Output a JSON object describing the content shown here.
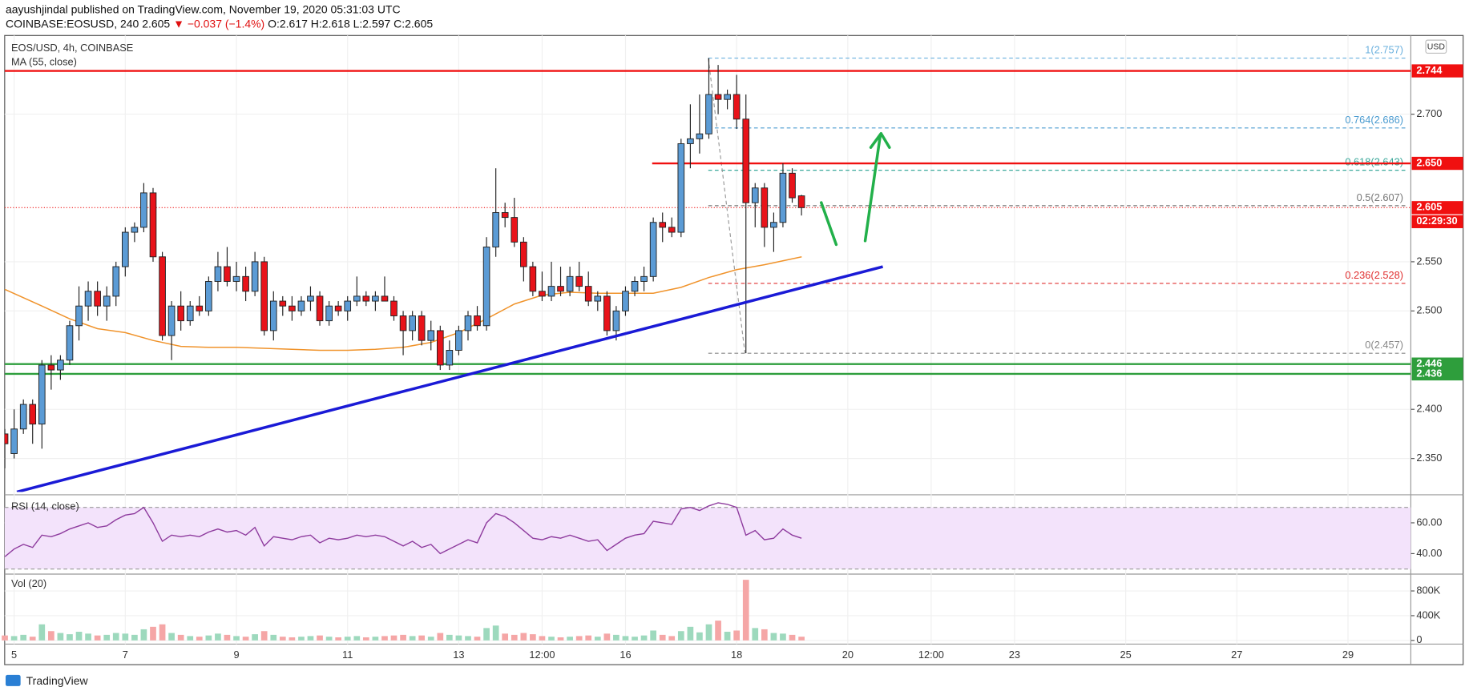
{
  "header": {
    "publisher": "aayushjindal published on TradingView.com, November 19, 2020 05:31:03 UTC",
    "symbol": "COINBASE:EOSUSD, 240",
    "last": "2.605",
    "change": "▼ −0.037 (−1.4%)",
    "ohlc": "O:2.617 H:2.618 L:2.597 C:2.605",
    "currency": "USD",
    "footer": "TradingView"
  },
  "chart_data": {
    "type": "candlestick",
    "title": "EOS/USD, 4h, COINBASE",
    "up_color": "#5b9bd5",
    "down_color": "#e8131a",
    "grid": true,
    "xlim": [
      4.83,
      30.13
    ],
    "ylim": [
      2.316,
      2.78
    ],
    "xticks": [
      5,
      7,
      9,
      11,
      13,
      {
        "value": 14.5,
        "label": "12:00"
      },
      16,
      18,
      20,
      {
        "value": 21.5,
        "label": "12:00"
      },
      23,
      25,
      27,
      29
    ],
    "yticks": [
      {
        "value": 2.35,
        "label": "2.350"
      },
      {
        "value": 2.4,
        "label": "2.400"
      },
      {
        "value": 2.5,
        "label": "2.500"
      },
      {
        "value": 2.55,
        "label": "2.550"
      },
      {
        "value": 2.7,
        "label": "2.700"
      }
    ],
    "x": [
      4.833,
      5,
      5.167,
      5.333,
      5.5,
      5.667,
      5.833,
      6,
      6.167,
      6.333,
      6.5,
      6.667,
      6.833,
      7,
      7.167,
      7.333,
      7.5,
      7.667,
      7.833,
      8,
      8.167,
      8.333,
      8.5,
      8.667,
      8.833,
      9,
      9.167,
      9.333,
      9.5,
      9.667,
      9.833,
      10,
      10.167,
      10.333,
      10.5,
      10.667,
      10.833,
      11,
      11.167,
      11.333,
      11.5,
      11.667,
      11.833,
      12,
      12.167,
      12.333,
      12.5,
      12.667,
      12.833,
      13,
      13.167,
      13.333,
      13.5,
      13.667,
      13.833,
      14,
      14.167,
      14.333,
      14.5,
      14.667,
      14.833,
      15,
      15.167,
      15.333,
      15.5,
      15.667,
      15.833,
      16,
      16.167,
      16.333,
      16.5,
      16.667,
      16.833,
      17,
      17.167,
      17.333,
      17.5,
      17.667,
      17.833,
      18,
      18.167,
      18.333,
      18.5,
      18.667,
      18.833,
      19,
      19.167
    ],
    "open": [
      2.375,
      2.355,
      2.38,
      2.405,
      2.385,
      2.445,
      2.44,
      2.45,
      2.485,
      2.505,
      2.52,
      2.505,
      2.515,
      2.545,
      2.58,
      2.585,
      2.62,
      2.555,
      2.475,
      2.505,
      2.49,
      2.505,
      2.5,
      2.53,
      2.545,
      2.53,
      2.535,
      2.52,
      2.55,
      2.48,
      2.51,
      2.505,
      2.5,
      2.51,
      2.515,
      2.49,
      2.505,
      2.5,
      2.51,
      2.515,
      2.51,
      2.515,
      2.51,
      2.495,
      2.48,
      2.495,
      2.47,
      2.48,
      2.445,
      2.46,
      2.48,
      2.495,
      2.485,
      2.565,
      2.6,
      2.595,
      2.57,
      2.545,
      2.52,
      2.515,
      2.525,
      2.52,
      2.535,
      2.525,
      2.51,
      2.515,
      2.48,
      2.5,
      2.52,
      2.53,
      2.535,
      2.59,
      2.585,
      2.58,
      2.67,
      2.675,
      2.68,
      2.72,
      2.715,
      2.72,
      2.695,
      2.61,
      2.625,
      2.585,
      2.59,
      2.64,
      2.617
    ],
    "high": [
      2.38,
      2.4,
      2.41,
      2.41,
      2.45,
      2.455,
      2.455,
      2.49,
      2.525,
      2.53,
      2.53,
      2.525,
      2.55,
      2.585,
      2.59,
      2.63,
      2.625,
      2.56,
      2.51,
      2.52,
      2.51,
      2.515,
      2.535,
      2.56,
      2.565,
      2.55,
      2.545,
      2.56,
      2.555,
      2.52,
      2.515,
      2.515,
      2.515,
      2.525,
      2.52,
      2.51,
      2.51,
      2.515,
      2.535,
      2.52,
      2.52,
      2.535,
      2.515,
      2.5,
      2.5,
      2.5,
      2.49,
      2.485,
      2.47,
      2.485,
      2.5,
      2.505,
      2.575,
      2.645,
      2.61,
      2.615,
      2.575,
      2.55,
      2.54,
      2.55,
      2.545,
      2.545,
      2.55,
      2.54,
      2.52,
      2.52,
      2.505,
      2.525,
      2.535,
      2.545,
      2.595,
      2.6,
      2.595,
      2.675,
      2.71,
      2.72,
      2.757,
      2.75,
      2.725,
      2.74,
      2.72,
      2.63,
      2.63,
      2.6,
      2.65,
      2.645,
      2.618
    ],
    "low": [
      2.34,
      2.35,
      2.375,
      2.365,
      2.36,
      2.42,
      2.43,
      2.445,
      2.47,
      2.49,
      2.495,
      2.49,
      2.505,
      2.535,
      2.57,
      2.58,
      2.55,
      2.47,
      2.45,
      2.48,
      2.485,
      2.495,
      2.495,
      2.52,
      2.525,
      2.52,
      2.51,
      2.515,
      2.475,
      2.47,
      2.495,
      2.49,
      2.495,
      2.5,
      2.485,
      2.485,
      2.495,
      2.49,
      2.505,
      2.505,
      2.5,
      2.51,
      2.49,
      2.455,
      2.47,
      2.465,
      2.46,
      2.44,
      2.44,
      2.455,
      2.47,
      2.48,
      2.48,
      2.555,
      2.585,
      2.565,
      2.53,
      2.515,
      2.51,
      2.51,
      2.515,
      2.515,
      2.52,
      2.505,
      2.5,
      2.475,
      2.47,
      2.495,
      2.515,
      2.52,
      2.53,
      2.57,
      2.575,
      2.575,
      2.645,
      2.66,
      2.675,
      2.7,
      2.705,
      2.685,
      2.457,
      2.585,
      2.565,
      2.56,
      2.585,
      2.61,
      2.597
    ],
    "close": [
      2.365,
      2.38,
      2.405,
      2.385,
      2.445,
      2.44,
      2.45,
      2.485,
      2.505,
      2.52,
      2.505,
      2.515,
      2.545,
      2.58,
      2.585,
      2.62,
      2.555,
      2.475,
      2.505,
      2.49,
      2.505,
      2.5,
      2.53,
      2.545,
      2.53,
      2.535,
      2.52,
      2.55,
      2.48,
      2.51,
      2.505,
      2.5,
      2.51,
      2.515,
      2.49,
      2.505,
      2.5,
      2.51,
      2.515,
      2.51,
      2.515,
      2.51,
      2.495,
      2.48,
      2.495,
      2.47,
      2.48,
      2.445,
      2.46,
      2.48,
      2.495,
      2.485,
      2.565,
      2.6,
      2.595,
      2.57,
      2.545,
      2.52,
      2.515,
      2.525,
      2.52,
      2.535,
      2.525,
      2.51,
      2.515,
      2.48,
      2.5,
      2.52,
      2.53,
      2.535,
      2.59,
      2.585,
      2.58,
      2.67,
      2.675,
      2.68,
      2.72,
      2.715,
      2.72,
      2.695,
      2.61,
      2.625,
      2.585,
      2.59,
      2.64,
      2.615,
      2.605
    ],
    "ma": {
      "name": "MA (55, close)",
      "color": "#f0932b",
      "x": [
        4.83,
        5.5,
        6,
        6.5,
        7,
        7.5,
        8,
        8.5,
        9,
        9.5,
        10,
        10.5,
        11,
        11.5,
        12,
        12.5,
        13,
        13.5,
        14,
        14.5,
        15,
        15.5,
        16,
        16.5,
        17,
        17.5,
        18,
        18.5,
        19.17
      ],
      "values": [
        2.522,
        2.505,
        2.492,
        2.482,
        2.478,
        2.47,
        2.464,
        2.463,
        2.463,
        2.462,
        2.461,
        2.46,
        2.46,
        2.461,
        2.463,
        2.468,
        2.478,
        2.492,
        2.507,
        2.516,
        2.519,
        2.518,
        2.518,
        2.518,
        2.524,
        2.534,
        2.542,
        2.547,
        2.555
      ]
    },
    "trendline": {
      "color": "#1a1ad6",
      "x": [
        5.05,
        20.63
      ],
      "y": [
        2.316,
        2.545
      ]
    },
    "levels": [
      {
        "value": 2.744,
        "color": "#f01010"
      },
      {
        "value": 2.65,
        "label": "2.650",
        "color": "#f01010",
        "from": 16.48
      },
      {
        "value": 2.446,
        "color": "#2e9e3c"
      },
      {
        "value": 2.436,
        "color": "#2e9e3c"
      }
    ],
    "last_price": 2.605,
    "countdown": "02:29:30",
    "last_color": "#f01010",
    "fib": {
      "x": [
        17.49,
        18.15
      ],
      "levels": [
        {
          "label": "1(2.757)",
          "value": 2.757,
          "color": "#6ab0de"
        },
        {
          "label": "0.764(2.686)",
          "value": 2.686,
          "color": "#4a9bd0"
        },
        {
          "label": "0.618(2.643)",
          "value": 2.643,
          "color": "#3aa89a"
        },
        {
          "label": "0.5(2.607)",
          "value": 2.607,
          "color": "#777777"
        },
        {
          "label": "0.236(2.528)",
          "value": 2.528,
          "color": "#e03030"
        },
        {
          "label": "0(2.457)",
          "value": 2.457,
          "color": "#888888"
        }
      ]
    },
    "indicators": [
      {
        "type": "line",
        "name": "RSI (14, close)",
        "color": "#8e3b9e",
        "band": [
          30,
          70
        ],
        "band_color": "#f3e3fb",
        "ylim": [
          27.3,
          76.4
        ],
        "yticks": [
          {
            "value": 60,
            "label": "60.00"
          },
          {
            "value": 40,
            "label": "40.00"
          }
        ],
        "values": [
          38,
          43,
          46,
          44,
          52,
          51,
          53,
          56,
          58,
          60,
          57,
          58,
          62,
          65,
          66,
          70,
          60,
          48,
          52,
          51,
          52,
          51,
          54,
          56,
          54,
          55,
          52,
          57,
          45,
          51,
          50,
          49,
          51,
          52,
          47,
          50,
          49,
          50,
          52,
          51,
          52,
          51,
          48,
          45,
          48,
          44,
          46,
          40,
          43,
          46,
          49,
          47,
          60,
          66,
          64,
          60,
          55,
          50,
          49,
          51,
          50,
          52,
          50,
          48,
          49,
          42,
          46,
          50,
          52,
          53,
          61,
          60,
          59,
          69,
          70,
          68,
          71,
          73,
          72,
          70,
          52,
          55,
          49,
          50,
          56,
          52,
          50
        ]
      },
      {
        "type": "bar",
        "name": "Vol (20)",
        "up_color": "#9dd9bd",
        "down_color": "#f5a6a6",
        "ylim": [
          -60000,
          1057000
        ],
        "yticks": [
          {
            "value": 800000,
            "label": "800K"
          },
          {
            "value": 400000,
            "label": "400K"
          },
          0
        ],
        "values": [
          80000,
          70000,
          90000,
          60000,
          260000,
          150000,
          120000,
          100000,
          140000,
          110000,
          80000,
          90000,
          120000,
          110000,
          90000,
          180000,
          220000,
          260000,
          120000,
          90000,
          70000,
          60000,
          80000,
          110000,
          90000,
          70000,
          60000,
          100000,
          150000,
          90000,
          60000,
          50000,
          60000,
          70000,
          80000,
          60000,
          50000,
          60000,
          70000,
          50000,
          60000,
          70000,
          80000,
          90000,
          70000,
          80000,
          60000,
          120000,
          90000,
          80000,
          70000,
          60000,
          200000,
          240000,
          110000,
          90000,
          120000,
          100000,
          70000,
          60000,
          50000,
          60000,
          70000,
          80000,
          60000,
          110000,
          90000,
          70000,
          60000,
          80000,
          160000,
          90000,
          70000,
          150000,
          220000,
          130000,
          260000,
          320000,
          140000,
          160000,
          980000,
          200000,
          180000,
          120000,
          110000,
          90000,
          60000
        ]
      }
    ]
  }
}
